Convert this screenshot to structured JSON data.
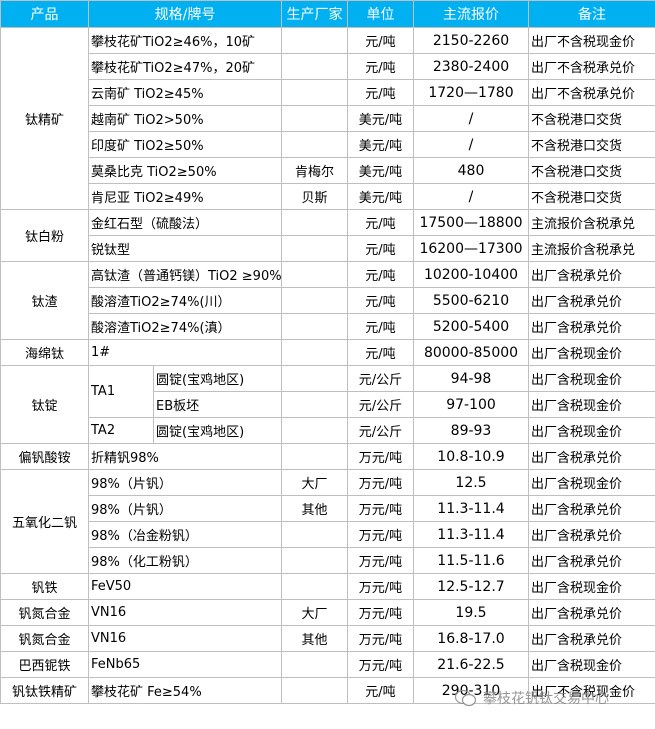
{
  "columns": [
    "产品",
    "规格/牌号",
    "生产厂家",
    "单位",
    "主流报价",
    "备注"
  ],
  "groups": [
    {
      "product": "钛精矿",
      "rows": [
        {
          "spec": "攀枝花矿TiO2≥46%，10矿",
          "unit": "元/吨",
          "price": "2150-2260",
          "note": "出厂不含税现金价"
        },
        {
          "spec": "攀枝花矿TiO2≥47%，20矿",
          "unit": "元/吨",
          "price": "2380-2400",
          "note": "出厂不含税承兑价"
        },
        {
          "spec": "云南矿 TiO2≥45%",
          "unit": "元/吨",
          "price": "1720—1780",
          "note": "出厂不含税承兑价"
        },
        {
          "spec": "越南矿 TiO2>50%",
          "unit": "美元/吨",
          "price": "/",
          "note": "不含税港口交货"
        },
        {
          "spec": "印度矿 TiO2≥50%",
          "unit": "美元/吨",
          "price": "/",
          "note": "不含税港口交货"
        },
        {
          "spec": "莫桑比克 TiO2≥50%",
          "maker": "肯梅尔",
          "unit": "美元/吨",
          "price": "480",
          "note": "不含税港口交货"
        },
        {
          "spec": "肯尼亚 TiO2≥49%",
          "maker": "贝斯",
          "unit": "美元/吨",
          "price": "/",
          "note": "不含税港口交货"
        }
      ]
    },
    {
      "product": "钛白粉",
      "rows": [
        {
          "spec": "金红石型（硫酸法）",
          "unit": "元/吨",
          "price": "17500—18800",
          "note": "主流报价含税承兑"
        },
        {
          "spec": "锐钛型",
          "unit": "元/吨",
          "price": "16200—17300",
          "note": "主流报价含税承兑"
        }
      ]
    },
    {
      "product": "钛渣",
      "rows": [
        {
          "spec": "高钛渣（普通钙镁）TiO2 ≥90%",
          "unit": "元/吨",
          "price": "10200-10400",
          "note": "出厂含税承兑价"
        },
        {
          "spec": "酸溶渣TiO2≥74%(川）",
          "unit": "元/吨",
          "price": "5500-6210",
          "note": "出厂含税承兑价"
        },
        {
          "spec": "酸溶渣TiO2≥74%(滇）",
          "unit": "元/吨",
          "price": "5200-5400",
          "note": "出厂含税承兑价"
        }
      ]
    },
    {
      "product": "海绵钛",
      "rows": [
        {
          "spec": "1#",
          "unit": "元/吨",
          "price": "80000-85000",
          "note": "出厂含税现金价"
        }
      ]
    },
    {
      "product": "钛锭",
      "rows": [
        {
          "grade": "TA1",
          "spec": "圆锭(宝鸡地区)",
          "unit": "元/公斤",
          "price": "94-98",
          "note": "出厂含税现金价"
        },
        {
          "spec": "EB板坯",
          "unit": "元/公斤",
          "price": "97-100",
          "note": "出厂含税现金价"
        },
        {
          "grade": "TA2",
          "spec": "圆锭(宝鸡地区)",
          "unit": "元/公斤",
          "price": "89-93",
          "note": "出厂含税现金价"
        }
      ]
    },
    {
      "product": "偏钒酸铵",
      "rows": [
        {
          "spec": "折精钒98%",
          "unit": "万元/吨",
          "price": "10.8-10.9",
          "note": "出厂含税承兑价"
        }
      ]
    },
    {
      "product": "五氧化二钒",
      "rows": [
        {
          "spec": "98%（片钒）",
          "maker": "大厂",
          "unit": "万元/吨",
          "price": "12.5",
          "note": "出厂含税现金价"
        },
        {
          "spec": "98%（片钒）",
          "maker": "其他",
          "unit": "万元/吨",
          "price": "11.3-11.4",
          "note": "出厂含税承兑价"
        },
        {
          "spec": "98%（冶金粉钒）",
          "unit": "万元/吨",
          "price": "11.3-11.4",
          "note": "出厂含税承兑价"
        },
        {
          "spec": "98%（化工粉钒）",
          "unit": "万元/吨",
          "price": "11.5-11.6",
          "note": "出厂含税承兑价"
        }
      ]
    },
    {
      "product": "钒铁",
      "rows": [
        {
          "spec": "FeV50",
          "unit": "万元/吨",
          "price": "12.5-12.7",
          "note": "出厂含税现金价"
        }
      ]
    },
    {
      "product": "钒氮合金",
      "rows": [
        {
          "spec": "VN16",
          "maker": "大厂",
          "unit": "万元/吨",
          "price": "19.5",
          "note": "出厂含税承兑价"
        }
      ]
    },
    {
      "product": "钒氮合金",
      "rows": [
        {
          "spec": "VN16",
          "maker": "其他",
          "unit": "万元/吨",
          "price": "16.8-17.0",
          "note": "出厂含税承兑价"
        }
      ]
    },
    {
      "product": "巴西铌铁",
      "rows": [
        {
          "spec": "FeNb65",
          "unit": "万元/吨",
          "price": "21.6-22.5",
          "note": "出厂含税现金价"
        }
      ]
    },
    {
      "product": "钒钛铁精矿",
      "rows": [
        {
          "spec": "攀枝花矿 Fe≥54%",
          "unit": "元/吨",
          "price": "290-310",
          "note": "出厂不含税现金价"
        }
      ]
    }
  ],
  "watermark": "攀枝花钒钛交易中心"
}
